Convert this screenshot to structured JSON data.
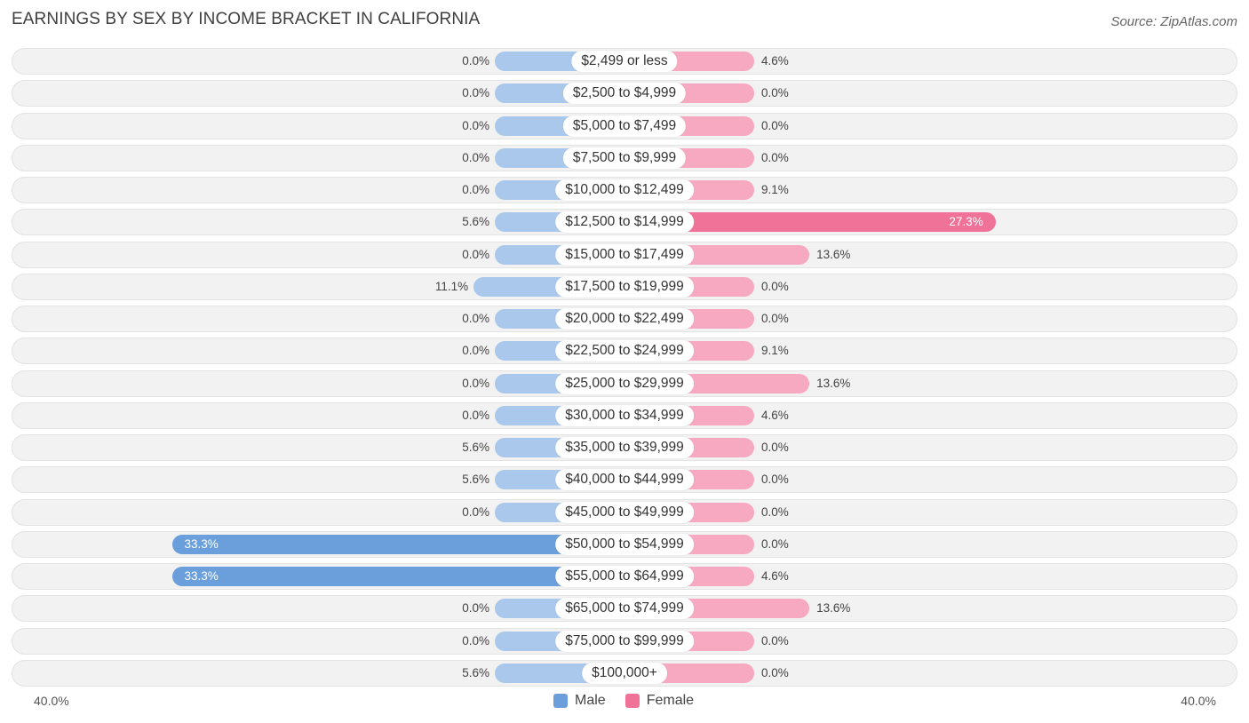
{
  "title": "EARNINGS BY SEX BY INCOME BRACKET IN CALIFORNIA",
  "source": "Source: ZipAtlas.com",
  "axis": {
    "left_label": "40.0%",
    "right_label": "40.0%"
  },
  "legend": {
    "male": "Male",
    "female": "Female"
  },
  "colors": {
    "male_light": "#a9c8ec",
    "male_strong": "#6a9fdb",
    "female_light": "#f6a9c1",
    "female_strong": "#f07298"
  },
  "chart_data": {
    "type": "bar",
    "orientation": "horizontal-diverging",
    "title": "EARNINGS BY SEX BY INCOME BRACKET IN CALIFORNIA",
    "xlim": [
      -40,
      40
    ],
    "series": [
      {
        "name": "Male",
        "values": [
          0.0,
          0.0,
          0.0,
          0.0,
          0.0,
          5.6,
          0.0,
          11.1,
          0.0,
          0.0,
          0.0,
          0.0,
          5.6,
          5.6,
          0.0,
          33.3,
          33.3,
          0.0,
          0.0,
          5.6
        ]
      },
      {
        "name": "Female",
        "values": [
          4.6,
          0.0,
          0.0,
          0.0,
          9.1,
          27.3,
          13.6,
          0.0,
          0.0,
          9.1,
          13.6,
          4.6,
          0.0,
          0.0,
          0.0,
          0.0,
          4.6,
          13.6,
          0.0,
          0.0
        ]
      }
    ],
    "categories": [
      "$2,499 or less",
      "$2,500 to $4,999",
      "$5,000 to $7,499",
      "$7,500 to $9,999",
      "$10,000 to $12,499",
      "$12,500 to $14,999",
      "$15,000 to $17,499",
      "$17,500 to $19,999",
      "$20,000 to $22,499",
      "$22,500 to $24,999",
      "$25,000 to $29,999",
      "$30,000 to $34,999",
      "$35,000 to $39,999",
      "$40,000 to $44,999",
      "$45,000 to $49,999",
      "$50,000 to $54,999",
      "$55,000 to $64,999",
      "$65,000 to $74,999",
      "$75,000 to $99,999",
      "$100,000+"
    ],
    "male_labels": [
      "0.0%",
      "0.0%",
      "0.0%",
      "0.0%",
      "0.0%",
      "5.6%",
      "0.0%",
      "11.1%",
      "0.0%",
      "0.0%",
      "0.0%",
      "0.0%",
      "5.6%",
      "5.6%",
      "0.0%",
      "33.3%",
      "33.3%",
      "0.0%",
      "0.0%",
      "5.6%"
    ],
    "female_labels": [
      "4.6%",
      "0.0%",
      "0.0%",
      "0.0%",
      "9.1%",
      "27.3%",
      "13.6%",
      "0.0%",
      "0.0%",
      "9.1%",
      "13.6%",
      "4.6%",
      "0.0%",
      "0.0%",
      "0.0%",
      "0.0%",
      "4.6%",
      "13.6%",
      "0.0%",
      "0.0%"
    ]
  }
}
